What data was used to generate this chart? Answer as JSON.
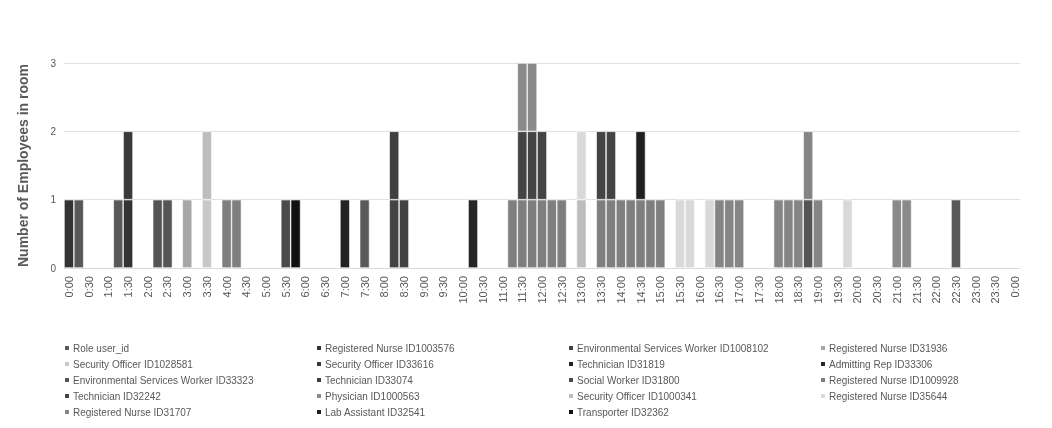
{
  "chart_data": {
    "type": "bar",
    "stacked": true,
    "ylabel": "Number of Employees in room",
    "ylim": [
      0,
      3
    ],
    "yticks": [
      0,
      1,
      2,
      3
    ],
    "grid": "y",
    "legend": "bottom",
    "categories": [
      "0:00",
      null,
      "0:30",
      null,
      "1:00",
      null,
      "1:30",
      null,
      "2:00",
      null,
      "2:30",
      null,
      "3:00",
      null,
      "3:30",
      null,
      "4:00",
      null,
      "4:30",
      null,
      "5:00",
      null,
      "5:30",
      null,
      "6:00",
      null,
      "6:30",
      null,
      "7:00",
      null,
      "7:30",
      null,
      "8:00",
      null,
      "8:30",
      null,
      "9:00",
      null,
      "9:30",
      null,
      "10:00",
      null,
      "10:30",
      null,
      "11:00",
      null,
      "11:30",
      null,
      "12:00",
      null,
      "12:30",
      null,
      "13:00",
      null,
      "13:30",
      null,
      "14:00",
      null,
      "14:30",
      null,
      "15:00",
      null,
      "15:30",
      null,
      "16:00",
      null,
      "16:30",
      null,
      "17:00",
      null,
      "17:30",
      null,
      "18:00",
      null,
      "18:30",
      null,
      "19:00",
      null,
      "19:30",
      null,
      "20:00",
      null,
      "20:30",
      null,
      "21:00",
      null,
      "21:30",
      null,
      "22:00",
      null,
      "22:30",
      null,
      "23:00",
      null,
      "23:30",
      null,
      "0:00"
    ],
    "series": [
      {
        "name": "Role user_id",
        "color": "#595959",
        "values": [
          null,
          1,
          null,
          null,
          null,
          1,
          null,
          null,
          null,
          null,
          null,
          null,
          null,
          null,
          null,
          null,
          null,
          null,
          null,
          null,
          null,
          null,
          null,
          null,
          null,
          null,
          null,
          null,
          null,
          null,
          1,
          null,
          null,
          null,
          null,
          null,
          null,
          null,
          null,
          null,
          null,
          null,
          null,
          null,
          null,
          null,
          null,
          null,
          null,
          null,
          null,
          null,
          null,
          null,
          null,
          null,
          null,
          null,
          null,
          null,
          null,
          null,
          null,
          null,
          null,
          null,
          null,
          null,
          null,
          null,
          null,
          null,
          null,
          null,
          null,
          null,
          null,
          null,
          null,
          null,
          null,
          null,
          null,
          null,
          null,
          null,
          null,
          null,
          null,
          null,
          1,
          null,
          null,
          null,
          null,
          null,
          null
        ]
      },
      {
        "name": "Registered Nurse ID1003576",
        "color": "#333333",
        "values": [
          1,
          null,
          null,
          null,
          null,
          null,
          1,
          null,
          null,
          null,
          null,
          null,
          null,
          null,
          null,
          null,
          null,
          null,
          null,
          null,
          null,
          null,
          null,
          null,
          null,
          null,
          null,
          null,
          null,
          null,
          null,
          null,
          null,
          null,
          null,
          null,
          null,
          null,
          null,
          null,
          null,
          null,
          null,
          null,
          null,
          null,
          null,
          null,
          null,
          null,
          null,
          null,
          null,
          null,
          null,
          null,
          null,
          null,
          null,
          null,
          null,
          null,
          null,
          null,
          null,
          null,
          null,
          null,
          null,
          null,
          null,
          null,
          null,
          null,
          null,
          null,
          null,
          null,
          null,
          null,
          null,
          null,
          null,
          null,
          null,
          null,
          null,
          null,
          null,
          null,
          null,
          null,
          null,
          null,
          null,
          null,
          null
        ]
      },
      {
        "name": "Environmental Services Worker ID1008102",
        "color": "#434343",
        "values": [
          null,
          null,
          null,
          null,
          null,
          null,
          null,
          null,
          null,
          null,
          null,
          null,
          null,
          null,
          null,
          null,
          null,
          null,
          null,
          null,
          null,
          null,
          null,
          null,
          null,
          null,
          null,
          null,
          null,
          null,
          null,
          null,
          null,
          1,
          1,
          null,
          null,
          null,
          null,
          null,
          null,
          null,
          null,
          null,
          null,
          null,
          null,
          null,
          null,
          null,
          null,
          null,
          null,
          null,
          null,
          null,
          null,
          null,
          null,
          null,
          null,
          null,
          null,
          null,
          null,
          null,
          null,
          null,
          null,
          null,
          null,
          null,
          null,
          null,
          null,
          null,
          null,
          null,
          null,
          null,
          null,
          null,
          null,
          null,
          null,
          null,
          null,
          null,
          null,
          null,
          null,
          null,
          null,
          null,
          null,
          null,
          null
        ]
      },
      {
        "name": "Registered Nurse ID31936",
        "color": "#a6a6a6",
        "values": [
          null,
          null,
          null,
          null,
          null,
          null,
          null,
          null,
          null,
          null,
          null,
          null,
          1,
          null,
          null,
          null,
          null,
          null,
          null,
          null,
          null,
          null,
          null,
          null,
          null,
          null,
          null,
          null,
          null,
          null,
          null,
          null,
          null,
          null,
          null,
          null,
          null,
          null,
          null,
          null,
          null,
          null,
          null,
          null,
          null,
          null,
          null,
          null,
          null,
          null,
          null,
          null,
          null,
          null,
          null,
          null,
          null,
          null,
          null,
          null,
          null,
          null,
          null,
          null,
          null,
          null,
          null,
          null,
          null,
          null,
          null,
          null,
          null,
          null,
          null,
          null,
          null,
          null,
          null,
          null,
          null,
          null,
          null,
          null,
          null,
          null,
          null,
          null,
          null,
          null,
          null,
          null,
          null,
          null,
          null,
          null,
          null
        ]
      },
      {
        "name": "Security Officer ID1028581",
        "color": "#c8c8c8",
        "values": [
          null,
          null,
          null,
          null,
          null,
          null,
          null,
          null,
          null,
          null,
          null,
          null,
          null,
          null,
          1,
          null,
          null,
          null,
          null,
          null,
          null,
          null,
          null,
          null,
          null,
          null,
          null,
          null,
          null,
          null,
          null,
          null,
          null,
          null,
          null,
          null,
          null,
          null,
          null,
          null,
          null,
          null,
          null,
          null,
          null,
          null,
          null,
          null,
          null,
          null,
          null,
          null,
          null,
          null,
          null,
          null,
          null,
          null,
          null,
          null,
          null,
          null,
          null,
          null,
          null,
          null,
          null,
          null,
          null,
          null,
          null,
          null,
          null,
          null,
          null,
          null,
          null,
          null,
          null,
          null,
          null,
          null,
          null,
          null,
          null,
          null,
          null,
          null,
          null,
          null,
          null,
          null,
          null,
          null,
          null,
          null,
          null
        ]
      },
      {
        "name": "Security Officer ID33616",
        "color": "#3a3a3a",
        "values": [
          null,
          null,
          null,
          null,
          null,
          null,
          1,
          null,
          null,
          null,
          null,
          null,
          null,
          null,
          null,
          null,
          null,
          null,
          null,
          null,
          null,
          null,
          null,
          null,
          null,
          null,
          null,
          null,
          null,
          null,
          null,
          null,
          null,
          null,
          null,
          null,
          null,
          null,
          null,
          null,
          null,
          null,
          null,
          null,
          null,
          null,
          null,
          null,
          null,
          null,
          null,
          null,
          null,
          null,
          null,
          null,
          null,
          null,
          null,
          null,
          null,
          null,
          null,
          null,
          null,
          null,
          null,
          null,
          null,
          null,
          null,
          null,
          null,
          null,
          null,
          null,
          null,
          null,
          null,
          null,
          null,
          null,
          null,
          null,
          null,
          null,
          null,
          null,
          null,
          null,
          null,
          null,
          null,
          null,
          null,
          null,
          null
        ]
      },
      {
        "name": "Technician ID31819",
        "color": "#222222",
        "values": [
          null,
          null,
          null,
          null,
          null,
          null,
          null,
          null,
          null,
          null,
          null,
          null,
          null,
          null,
          null,
          null,
          null,
          null,
          null,
          null,
          null,
          null,
          null,
          null,
          null,
          null,
          null,
          null,
          1,
          null,
          null,
          null,
          null,
          null,
          null,
          null,
          null,
          null,
          null,
          null,
          null,
          null,
          null,
          null,
          null,
          null,
          null,
          null,
          null,
          null,
          null,
          null,
          null,
          null,
          null,
          null,
          null,
          null,
          null,
          null,
          null,
          null,
          null,
          null,
          null,
          null,
          null,
          null,
          null,
          null,
          null,
          null,
          null,
          null,
          null,
          null,
          null,
          null,
          null,
          null,
          null,
          null,
          null,
          null,
          null,
          null,
          null,
          null,
          null,
          null,
          null,
          null,
          null,
          null,
          null,
          null,
          null
        ]
      },
      {
        "name": "Admitting Rep ID33306",
        "color": "#262626",
        "values": [
          null,
          null,
          null,
          null,
          null,
          null,
          null,
          null,
          null,
          null,
          null,
          null,
          null,
          null,
          null,
          null,
          null,
          null,
          null,
          null,
          null,
          null,
          null,
          null,
          null,
          null,
          null,
          null,
          null,
          null,
          null,
          null,
          null,
          null,
          null,
          null,
          null,
          null,
          null,
          null,
          null,
          1,
          null,
          null,
          null,
          null,
          null,
          null,
          null,
          null,
          null,
          null,
          null,
          null,
          null,
          null,
          null,
          null,
          null,
          null,
          null,
          null,
          null,
          null,
          null,
          null,
          null,
          null,
          null,
          null,
          null,
          null,
          null,
          null,
          null,
          null,
          null,
          null,
          null,
          null,
          null,
          null,
          null,
          null,
          null,
          null,
          null,
          null,
          null,
          null,
          null,
          null,
          null,
          null,
          null,
          null,
          null
        ]
      },
      {
        "name": "Environmental Services Worker ID33323",
        "color": "#555555",
        "values": [
          null,
          null,
          null,
          null,
          null,
          null,
          null,
          null,
          null,
          1,
          1,
          null,
          null,
          null,
          null,
          null,
          null,
          null,
          null,
          null,
          null,
          null,
          null,
          null,
          null,
          null,
          null,
          null,
          null,
          null,
          null,
          null,
          null,
          null,
          null,
          null,
          null,
          null,
          null,
          null,
          null,
          null,
          null,
          null,
          null,
          null,
          null,
          null,
          null,
          null,
          null,
          null,
          null,
          null,
          null,
          null,
          null,
          null,
          null,
          null,
          null,
          null,
          null,
          null,
          null,
          null,
          null,
          null,
          null,
          null,
          null,
          null,
          null,
          null,
          null,
          1,
          null,
          null,
          null,
          null,
          null,
          null,
          null,
          null,
          null,
          null,
          null,
          null,
          null,
          null,
          null,
          null,
          null,
          null,
          null,
          null,
          null
        ]
      },
      {
        "name": "Technician ID33074",
        "color": "#3f3f3f",
        "values": [
          null,
          null,
          null,
          null,
          null,
          null,
          null,
          null,
          null,
          null,
          null,
          null,
          null,
          null,
          null,
          null,
          null,
          null,
          null,
          null,
          null,
          null,
          null,
          null,
          null,
          null,
          null,
          null,
          null,
          null,
          null,
          null,
          null,
          1,
          null,
          null,
          null,
          null,
          null,
          null,
          null,
          null,
          null,
          null,
          null,
          null,
          null,
          null,
          null,
          null,
          null,
          null,
          null,
          null,
          null,
          null,
          null,
          null,
          null,
          null,
          null,
          null,
          null,
          null,
          null,
          null,
          null,
          null,
          null,
          null,
          null,
          null,
          null,
          null,
          null,
          null,
          null,
          null,
          null,
          null,
          null,
          null,
          null,
          null,
          null,
          null,
          null,
          null,
          null,
          null,
          null,
          null,
          null,
          null,
          null,
          null,
          null
        ]
      },
      {
        "name": "Social Worker ID31800",
        "color": "#4a4a4a",
        "values": [
          null,
          null,
          null,
          null,
          null,
          null,
          null,
          null,
          null,
          null,
          null,
          null,
          null,
          null,
          null,
          null,
          null,
          null,
          null,
          null,
          null,
          null,
          1,
          null,
          null,
          null,
          null,
          null,
          null,
          null,
          null,
          null,
          null,
          null,
          null,
          null,
          null,
          null,
          null,
          null,
          null,
          null,
          null,
          null,
          null,
          null,
          null,
          null,
          null,
          null,
          null,
          null,
          null,
          null,
          null,
          null,
          null,
          null,
          null,
          null,
          null,
          null,
          null,
          null,
          null,
          null,
          null,
          null,
          null,
          null,
          null,
          null,
          null,
          null,
          null,
          null,
          null,
          null,
          null,
          null,
          null,
          null,
          null,
          null,
          null,
          null,
          null,
          null,
          null,
          null,
          null,
          null,
          null,
          null,
          null,
          null,
          null
        ]
      },
      {
        "name": "Registered Nurse ID1009928",
        "color": "#7f7f7f",
        "values": [
          null,
          null,
          null,
          null,
          null,
          null,
          null,
          null,
          null,
          null,
          null,
          null,
          null,
          null,
          null,
          null,
          1,
          1,
          null,
          null,
          null,
          null,
          null,
          null,
          null,
          null,
          null,
          null,
          null,
          null,
          null,
          null,
          null,
          null,
          null,
          null,
          null,
          null,
          null,
          null,
          null,
          null,
          null,
          null,
          null,
          1,
          1,
          1,
          1,
          1,
          1,
          null,
          null,
          null,
          1,
          1,
          1,
          1,
          1,
          1,
          1,
          null,
          null,
          null,
          null,
          null,
          null,
          null,
          null,
          null,
          null,
          null,
          null,
          null,
          null,
          null,
          null,
          null,
          null,
          null,
          null,
          null,
          null,
          null,
          null,
          null,
          null,
          null,
          null,
          null,
          null,
          null,
          null,
          null,
          null,
          null,
          null
        ]
      },
      {
        "name": "Technician ID32242",
        "color": "#444444",
        "values": [
          null,
          null,
          null,
          null,
          null,
          null,
          null,
          null,
          null,
          null,
          null,
          null,
          null,
          null,
          null,
          null,
          null,
          null,
          null,
          null,
          null,
          null,
          null,
          null,
          null,
          null,
          null,
          null,
          null,
          null,
          null,
          null,
          null,
          null,
          null,
          null,
          null,
          null,
          null,
          null,
          null,
          null,
          null,
          null,
          null,
          null,
          1,
          1,
          1,
          null,
          null,
          null,
          null,
          null,
          1,
          1,
          null,
          null,
          null,
          null,
          null,
          null,
          null,
          null,
          null,
          null,
          null,
          null,
          null,
          null,
          null,
          null,
          null,
          null,
          null,
          null,
          null,
          null,
          null,
          null,
          null,
          null,
          null,
          null,
          null,
          null,
          null,
          null,
          null,
          null,
          null,
          null,
          null,
          null,
          null,
          null,
          null
        ]
      },
      {
        "name": "Physician ID1000563",
        "color": "#8a8a8a",
        "values": [
          null,
          null,
          null,
          null,
          null,
          null,
          null,
          null,
          null,
          null,
          null,
          null,
          null,
          null,
          null,
          null,
          null,
          null,
          null,
          null,
          null,
          null,
          null,
          null,
          null,
          null,
          null,
          null,
          null,
          null,
          null,
          null,
          null,
          null,
          null,
          null,
          null,
          null,
          null,
          null,
          null,
          null,
          null,
          null,
          null,
          null,
          1,
          1,
          null,
          null,
          null,
          null,
          null,
          null,
          null,
          null,
          null,
          null,
          null,
          null,
          null,
          null,
          null,
          null,
          null,
          null,
          null,
          null,
          null,
          null,
          null,
          null,
          null,
          null,
          null,
          null,
          null,
          null,
          null,
          null,
          null,
          null,
          null,
          null,
          1,
          1,
          null,
          null,
          null,
          null,
          null,
          null,
          null,
          null,
          null,
          null,
          null
        ]
      },
      {
        "name": "Security Officer ID1000341",
        "color": "#bdbdbd",
        "values": [
          null,
          null,
          null,
          null,
          null,
          null,
          null,
          null,
          null,
          null,
          null,
          null,
          null,
          null,
          1,
          null,
          null,
          null,
          null,
          null,
          null,
          null,
          null,
          null,
          null,
          null,
          null,
          null,
          null,
          null,
          null,
          null,
          null,
          null,
          null,
          null,
          null,
          null,
          null,
          null,
          null,
          null,
          null,
          null,
          null,
          null,
          null,
          null,
          null,
          null,
          null,
          null,
          1,
          null,
          null,
          null,
          null,
          null,
          null,
          null,
          null,
          null,
          null,
          null,
          null,
          null,
          null,
          null,
          null,
          null,
          null,
          null,
          null,
          null,
          null,
          null,
          null,
          null,
          null,
          null,
          null,
          null,
          null,
          null,
          null,
          null,
          null,
          null,
          null,
          null,
          null,
          null,
          null,
          null,
          null,
          null,
          null
        ]
      },
      {
        "name": "Registered Nurse ID35644",
        "color": "#d9d9d9",
        "values": [
          null,
          null,
          null,
          null,
          null,
          null,
          null,
          null,
          null,
          null,
          null,
          null,
          null,
          null,
          null,
          null,
          null,
          null,
          null,
          null,
          null,
          null,
          null,
          null,
          null,
          null,
          null,
          null,
          null,
          null,
          null,
          null,
          null,
          null,
          null,
          null,
          null,
          null,
          null,
          null,
          null,
          null,
          null,
          null,
          null,
          null,
          null,
          null,
          null,
          null,
          null,
          null,
          1,
          null,
          null,
          null,
          null,
          null,
          null,
          null,
          null,
          null,
          1,
          1,
          null,
          1,
          null,
          null,
          null,
          null,
          null,
          null,
          null,
          null,
          null,
          null,
          null,
          null,
          null,
          1,
          null,
          null,
          null,
          null,
          null,
          null,
          null,
          null,
          null,
          null,
          null,
          null,
          null,
          null,
          null,
          null,
          null
        ]
      },
      {
        "name": "Registered Nurse ID31707",
        "color": "#858585",
        "values": [
          null,
          null,
          null,
          null,
          null,
          null,
          null,
          null,
          null,
          null,
          null,
          null,
          null,
          null,
          null,
          null,
          null,
          null,
          null,
          null,
          null,
          null,
          null,
          null,
          null,
          null,
          null,
          null,
          null,
          null,
          null,
          null,
          null,
          null,
          null,
          null,
          null,
          null,
          null,
          null,
          null,
          null,
          null,
          null,
          null,
          null,
          null,
          null,
          null,
          null,
          null,
          null,
          null,
          null,
          null,
          null,
          null,
          null,
          null,
          null,
          null,
          null,
          null,
          null,
          null,
          null,
          1,
          1,
          1,
          null,
          null,
          null,
          1,
          1,
          1,
          1,
          1,
          null,
          null,
          null,
          null,
          null,
          null,
          null,
          null,
          null,
          null,
          null,
          null,
          null,
          null,
          null,
          null,
          null,
          null,
          null,
          null
        ]
      },
      {
        "name": "Lab Assistant ID32541",
        "color": "#1f1f1f",
        "values": [
          null,
          null,
          null,
          null,
          null,
          null,
          null,
          null,
          null,
          null,
          null,
          null,
          null,
          null,
          null,
          null,
          null,
          null,
          null,
          null,
          null,
          null,
          null,
          null,
          null,
          null,
          null,
          null,
          null,
          null,
          null,
          null,
          null,
          null,
          null,
          null,
          null,
          null,
          null,
          null,
          null,
          null,
          null,
          null,
          null,
          null,
          null,
          null,
          null,
          null,
          null,
          null,
          null,
          null,
          null,
          null,
          null,
          null,
          1,
          null,
          null,
          null,
          null,
          null,
          null,
          null,
          null,
          null,
          null,
          null,
          null,
          null,
          null,
          null,
          null,
          null,
          null,
          null,
          null,
          null,
          null,
          null,
          null,
          null,
          null,
          null,
          null,
          null,
          null,
          null,
          null,
          null,
          null,
          null,
          null,
          null,
          null
        ]
      },
      {
        "name": "Transporter ID32362",
        "color": "#111111",
        "values": [
          null,
          null,
          null,
          null,
          null,
          null,
          null,
          null,
          null,
          null,
          null,
          null,
          null,
          null,
          null,
          null,
          null,
          null,
          null,
          null,
          null,
          null,
          null,
          1,
          null,
          null,
          null,
          null,
          null,
          null,
          null,
          null,
          null,
          null,
          null,
          null,
          null,
          null,
          null,
          null,
          null,
          null,
          null,
          null,
          null,
          null,
          null,
          null,
          null,
          null,
          null,
          null,
          null,
          null,
          null,
          null,
          null,
          null,
          null,
          null,
          null,
          null,
          null,
          null,
          null,
          null,
          null,
          null,
          null,
          null,
          null,
          null,
          null,
          null,
          null,
          null,
          null,
          null,
          null,
          null,
          null,
          null,
          null,
          null,
          null,
          null,
          null,
          null,
          null,
          null,
          null,
          null,
          null,
          null,
          null,
          null,
          null
        ]
      }
    ]
  }
}
